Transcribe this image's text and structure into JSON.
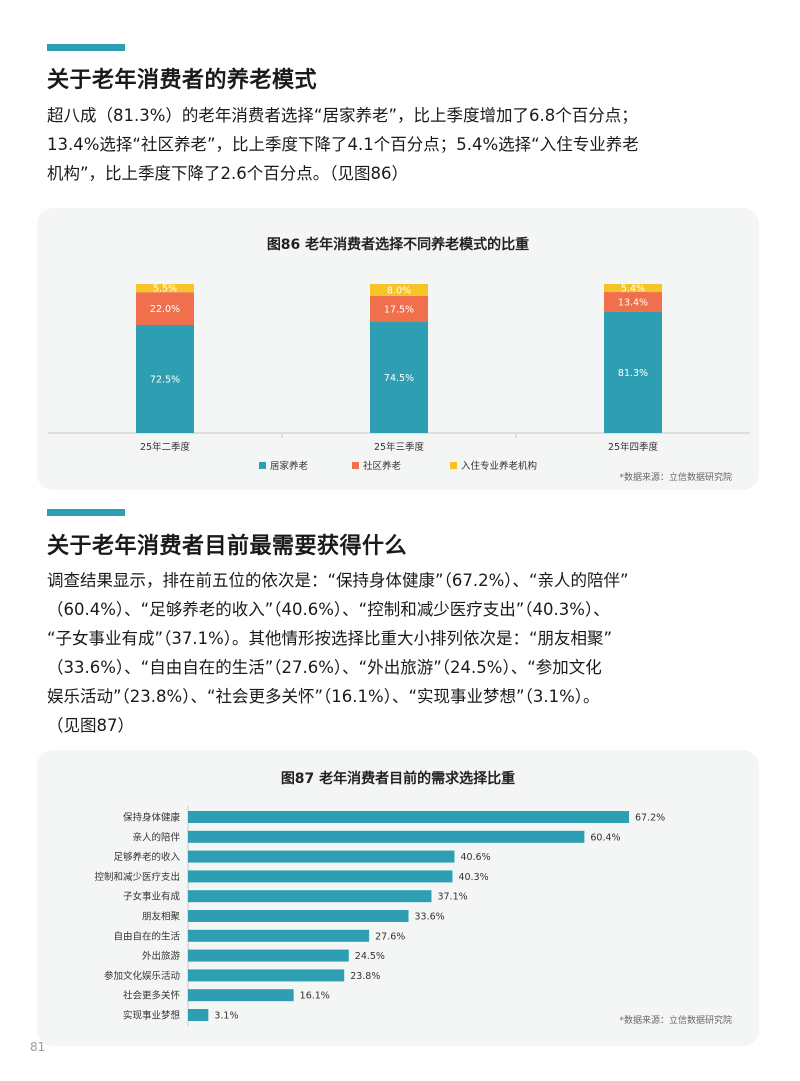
{
  "section1": {
    "title": "关于老年消费者的养老模式",
    "paragraph_lines": [
      "超八成（81.3%）的老年消费者选择“居家养老”，比上季度增加了6.8个百分点；",
      "13.4%选择“社区养老”，比上季度下降了4.1个百分点；5.4%选择“入住专业养老",
      "机构”，比上季度下降了2.6个百分点。（见图86）"
    ]
  },
  "figure86": {
    "source": "*数据来源：立信数据研究院",
    "colors": {
      "home": "#2e9fb2",
      "community": "#f0704e",
      "institution": "#f7c427"
    }
  },
  "section2": {
    "title": "关于老年消费者目前最需要获得什么",
    "paragraph_lines": [
      "调查结果显示，排在前五位的依次是：“保持身体健康”（67.2%）、“亲人的陪伴”",
      "（60.4%）、“足够养老的收入”（40.6%）、“控制和减少医疗支出”（40.3%）、",
      "“子女事业有成”（37.1%）。其他情形按选择比重大小排列依次是：“朋友相聚”",
      "（33.6%）、“自由自在的生活”（27.6%）、“外出旅游”（24.5%）、“参加文化",
      "娱乐活动”（23.8%）、“社会更多关怀”（16.1%）、“实现事业梦想”（3.1%）。",
      "（见图87）"
    ]
  },
  "figure87": {
    "source": "*数据来源：立信数据研究院",
    "bar_color": "#2e9fb2"
  },
  "page_number": "81",
  "chart_data": [
    {
      "type": "bar",
      "stacked": true,
      "title": "图86 老年消费者选择不同养老模式的比重",
      "categories": [
        "25年二季度",
        "25年三季度",
        "25年四季度"
      ],
      "series": [
        {
          "name": "居家养老",
          "values": [
            72.5,
            74.5,
            81.3
          ],
          "labels": [
            "72.5%",
            "74.5%",
            "81.3%"
          ],
          "color": "#2e9fb2"
        },
        {
          "name": "社区养老",
          "values": [
            22.0,
            17.5,
            13.4
          ],
          "labels": [
            "22.0%",
            "17.5%",
            "13.4%"
          ],
          "color": "#f0704e"
        },
        {
          "name": "入住专业养老机构",
          "values": [
            5.5,
            8.0,
            5.4
          ],
          "labels": [
            "5.5%",
            "8.0%",
            "5.4%"
          ],
          "color": "#f7c427"
        }
      ],
      "ylim": [
        0,
        100
      ],
      "legend": "bottom",
      "grid": false
    },
    {
      "type": "bar",
      "orientation": "horizontal",
      "title": "图87 老年消费者目前的需求选择比重",
      "categories": [
        "保持身体健康",
        "亲人的陪伴",
        "足够养老的收入",
        "控制和减少医疗支出",
        "子女事业有成",
        "朋友相聚",
        "自由自在的生活",
        "外出旅游",
        "参加文化娱乐活动",
        "社会更多关怀",
        "实现事业梦想"
      ],
      "values": [
        67.2,
        60.4,
        40.6,
        40.3,
        37.1,
        33.6,
        27.6,
        24.5,
        23.8,
        16.1,
        3.1
      ],
      "labels": [
        "67.2%",
        "60.4%",
        "40.6%",
        "40.3%",
        "37.1%",
        "33.6%",
        "27.6%",
        "24.5%",
        "23.8%",
        "16.1%",
        "3.1%"
      ],
      "xlim": [
        0,
        70
      ],
      "grid": false
    }
  ]
}
